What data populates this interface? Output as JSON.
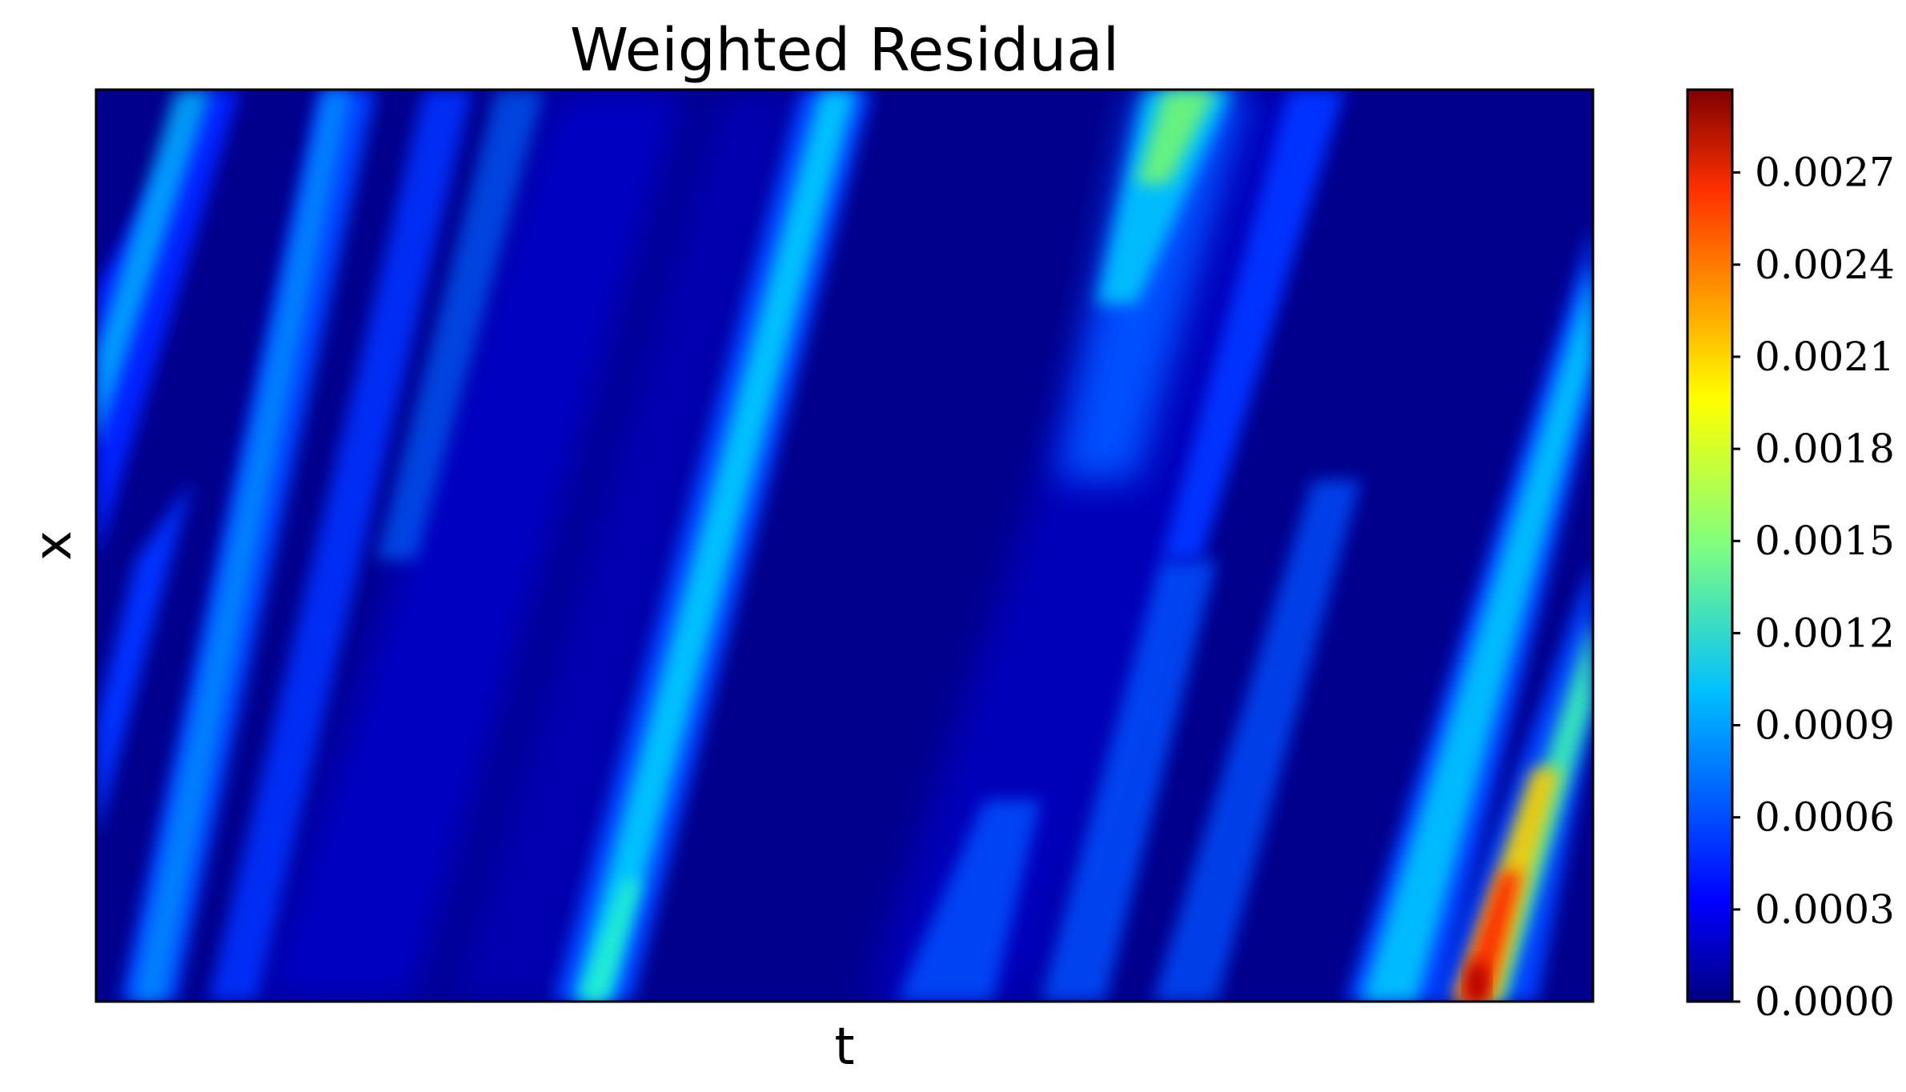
{
  "chart_data": {
    "type": "heatmap",
    "title": "Weighted Residual",
    "xlabel": "t",
    "ylabel": "x",
    "x_ticks_shown": false,
    "y_ticks_shown": false,
    "colormap": "jet",
    "colorbar": {
      "min": 0.0,
      "max": 0.00297,
      "ticks": [
        "0.0000",
        "0.0003",
        "0.0006",
        "0.0009",
        "0.0012",
        "0.0015",
        "0.0018",
        "0.0021",
        "0.0024",
        "0.0027"
      ],
      "tick_values": [
        0.0,
        0.0003,
        0.0006,
        0.0009,
        0.0012,
        0.0015,
        0.0018,
        0.0021,
        0.0024,
        0.0027
      ]
    },
    "field_description_bands": [
      {
        "t_start": 0.0,
        "t_end": 0.08,
        "peak": 0.0011
      },
      {
        "t_start": 0.12,
        "t_end": 0.22,
        "peak": 0.0008
      },
      {
        "t_start": 0.2,
        "t_end": 0.33,
        "peak": 0.0011
      },
      {
        "t_start": 0.33,
        "t_end": 0.47,
        "peak": 0.0006
      },
      {
        "t_start": 0.47,
        "t_end": 0.6,
        "peak": 0.0009
      },
      {
        "t_start": 0.62,
        "t_end": 0.72,
        "peak": 0.0007
      },
      {
        "t_start": 0.7,
        "t_end": 0.78,
        "peak": 0.0016
      },
      {
        "t_start": 0.86,
        "t_end": 0.97,
        "peak": 0.0011
      },
      {
        "t_start": 0.9,
        "t_end": 1.0,
        "peak": 0.00297
      }
    ]
  }
}
